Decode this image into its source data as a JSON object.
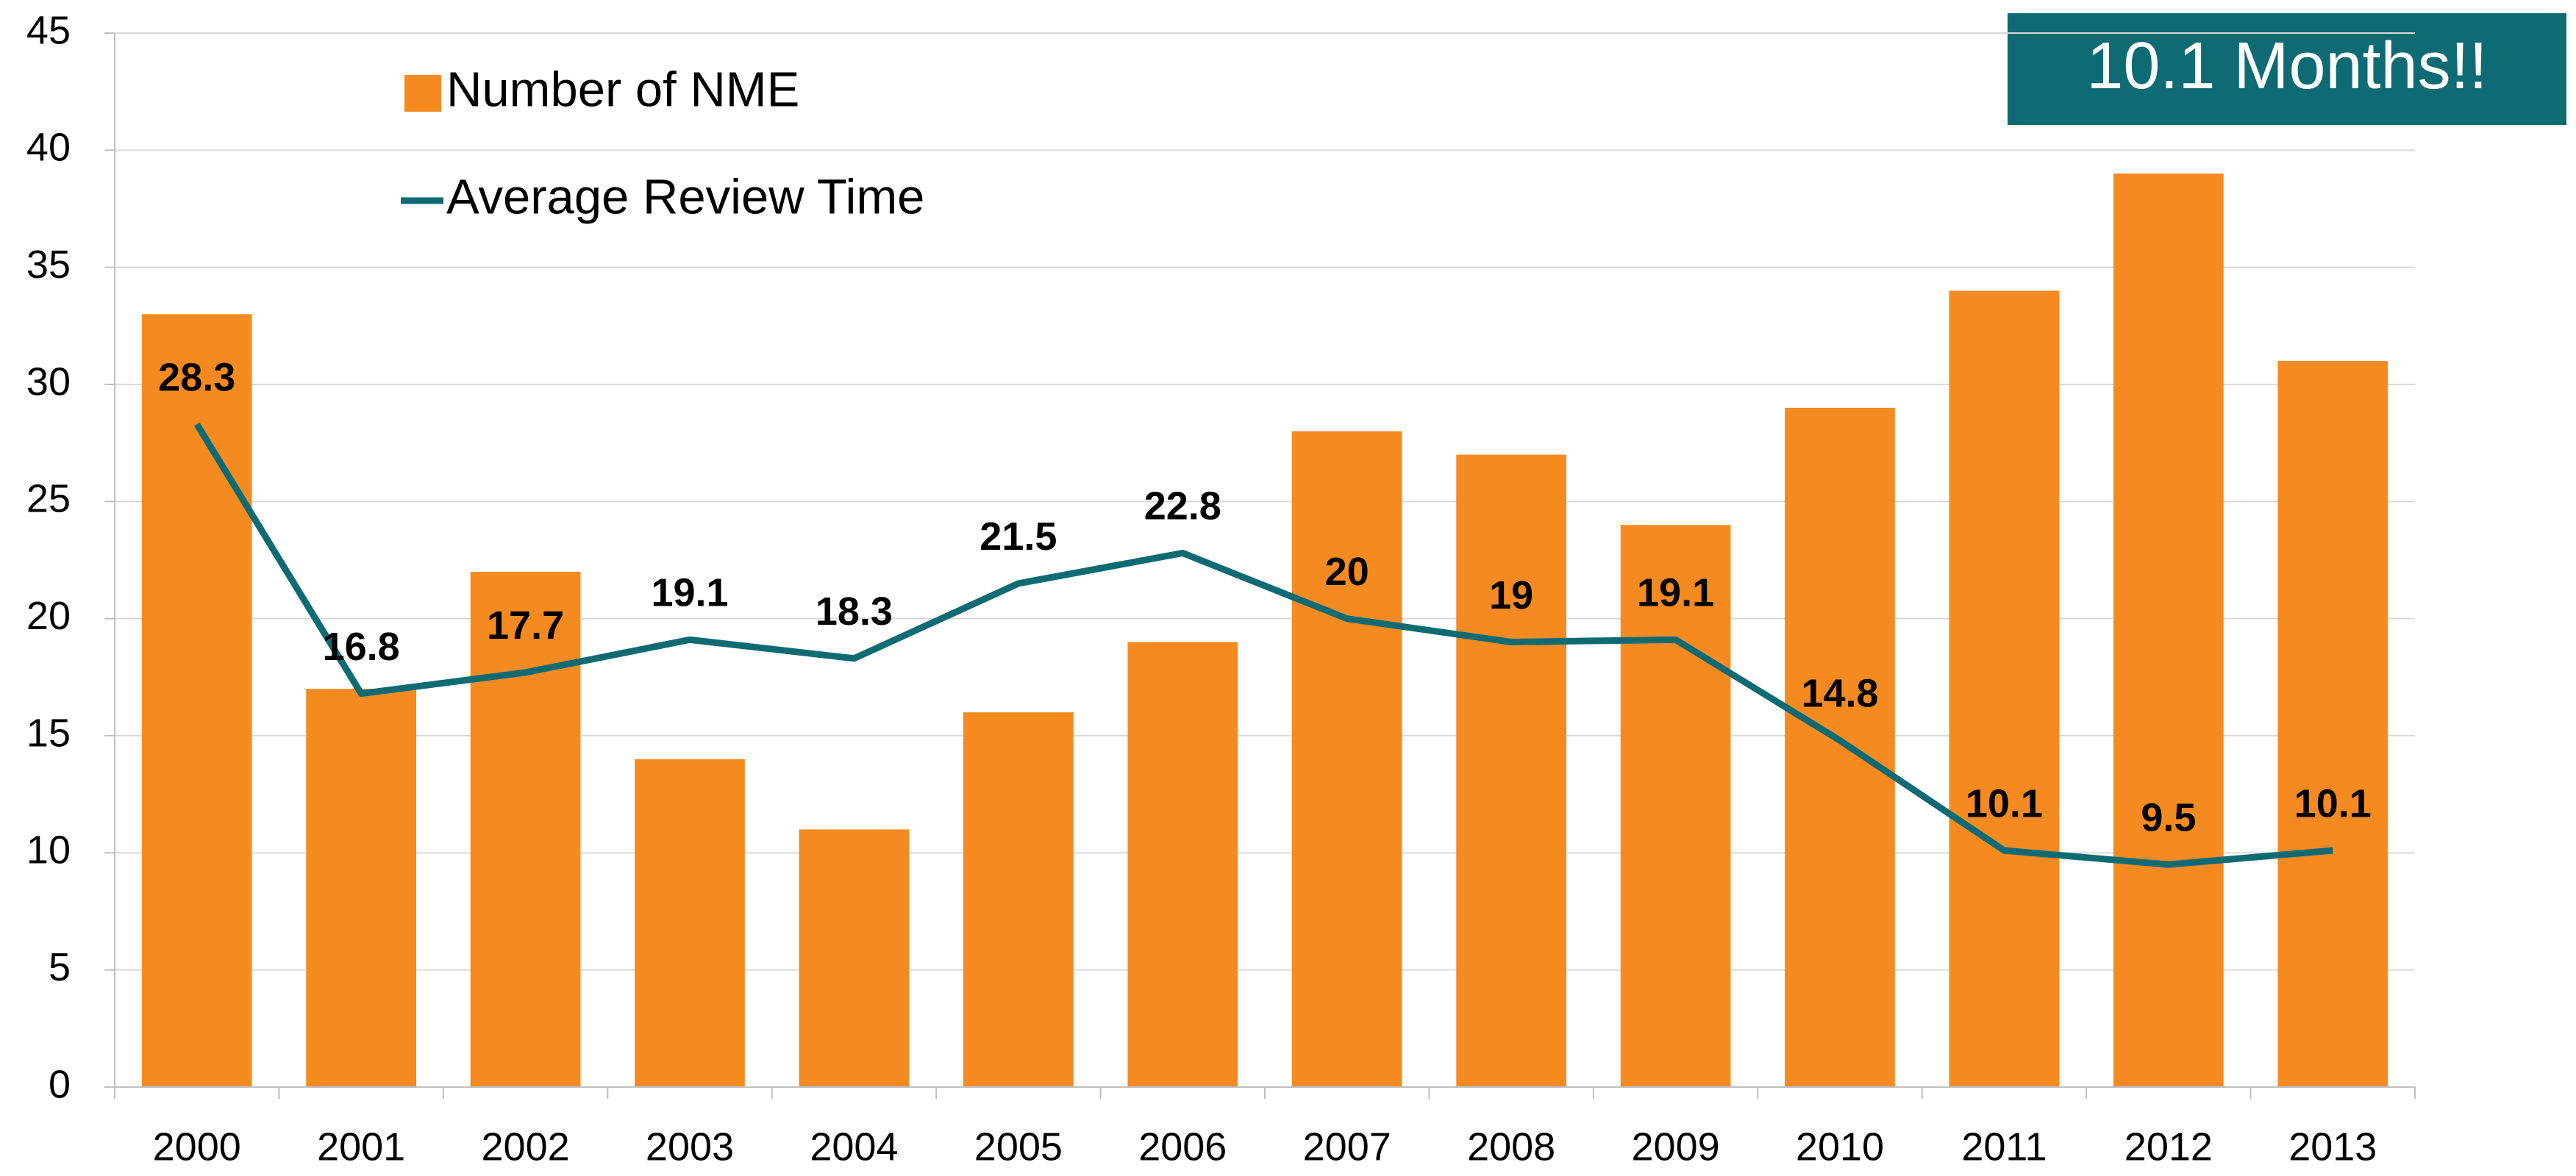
{
  "chart_data": {
    "type": "bar",
    "categories": [
      "2000",
      "2001",
      "2002",
      "2003",
      "2004",
      "2005",
      "2006",
      "2007",
      "2008",
      "2009",
      "2010",
      "2011",
      "2012",
      "2013"
    ],
    "series": [
      {
        "name": "Number of NME",
        "type": "bar",
        "color": "#f58a20",
        "values": [
          33,
          17,
          22,
          14,
          11,
          16,
          19,
          28,
          27,
          24,
          29,
          34,
          39,
          31
        ]
      },
      {
        "name": "Average Review Time",
        "type": "line",
        "color": "#0f6b73",
        "values": [
          28.3,
          16.8,
          17.7,
          19.1,
          18.3,
          21.5,
          22.8,
          20,
          19,
          19.1,
          14.8,
          10.1,
          9.5,
          10.1
        ]
      }
    ],
    "ylim": [
      0,
      45
    ],
    "yticks": [
      0,
      5,
      10,
      15,
      20,
      25,
      30,
      35,
      40,
      45
    ],
    "grid": true,
    "annotation": "10.1 Months!!"
  }
}
